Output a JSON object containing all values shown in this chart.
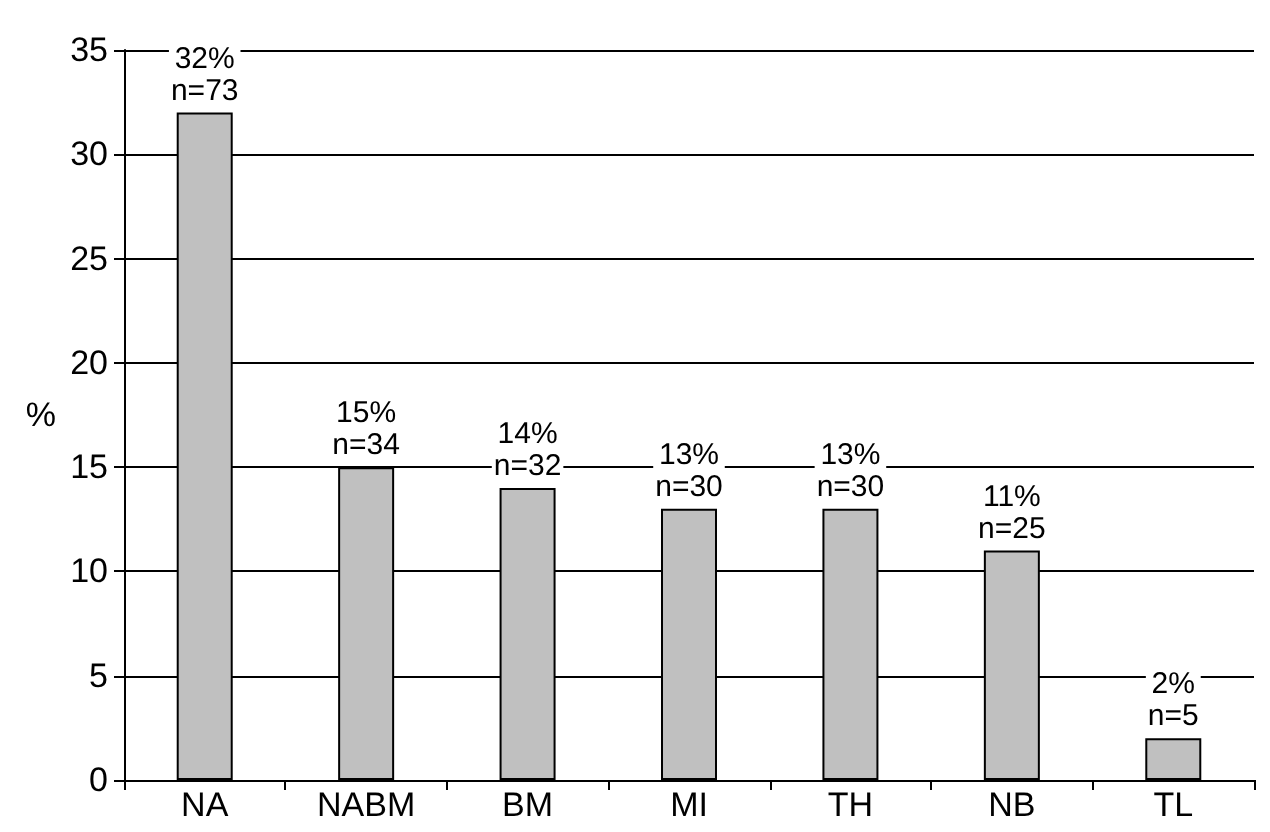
{
  "chart_data": {
    "type": "bar",
    "ylabel": "%",
    "categories": [
      "NA",
      "NABM",
      "BM",
      "MI",
      "TH",
      "NB",
      "TL"
    ],
    "values": [
      32,
      15,
      14,
      13,
      13,
      11,
      2
    ],
    "value_labels": [
      "32%\nn=73",
      "15%\nn=34",
      "14%\nn=32",
      "13%\nn=30",
      "13%\nn=30",
      "11%\nn=25",
      "2%\nn=5"
    ],
    "color": "#c0c0c0",
    "ylim": [
      0,
      35
    ],
    "yticks": [
      0,
      5,
      10,
      15,
      20,
      25,
      30,
      35
    ],
    "grid": "y"
  }
}
